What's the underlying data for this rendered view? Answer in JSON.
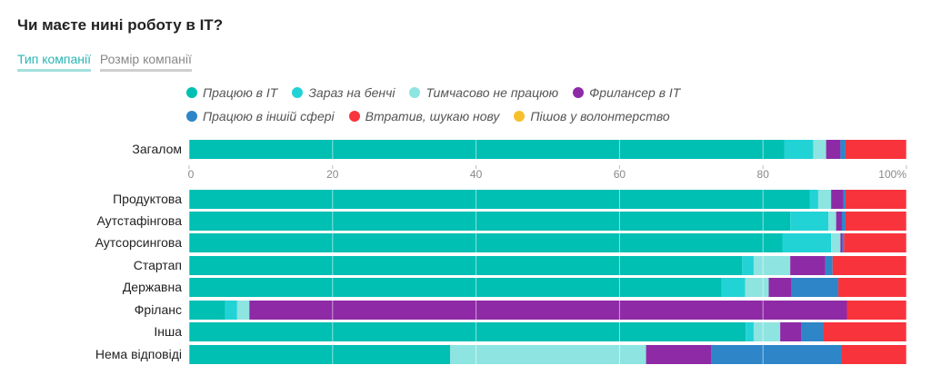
{
  "title": "Чи маєте нині роботу в IT?",
  "tabs": [
    {
      "label": "Тип компанії",
      "active": true
    },
    {
      "label": "Розмір компанії",
      "active": false
    }
  ],
  "legend_rows": [
    [
      0,
      1,
      2,
      3
    ],
    [
      4,
      5,
      6
    ]
  ],
  "chart_data": {
    "type": "bar",
    "orientation": "horizontal",
    "stacked": true,
    "xlim": [
      0,
      100
    ],
    "xticks": [
      "0",
      "20",
      "40",
      "60",
      "80",
      "100%"
    ],
    "grid": true,
    "legend_position": "top",
    "series": [
      {
        "name": "Працюю в IT",
        "color": "#00bfb3"
      },
      {
        "name": "Зараз на бенчі",
        "color": "#22d3d6"
      },
      {
        "name": "Тимчасово не працюю",
        "color": "#8ee4e0"
      },
      {
        "name": "Фрилансер в IT",
        "color": "#8e2aa6"
      },
      {
        "name": "Працюю в іншій сфері",
        "color": "#2e86c8"
      },
      {
        "name": "Втратив, шукаю нову",
        "color": "#f8333c"
      },
      {
        "name": "Пішов у волонтерство",
        "color": "#f5c02c"
      }
    ],
    "categories": [
      "Загалом",
      "Продуктова",
      "Аутстафінгова",
      "Аутсорсингова",
      "Стартап",
      "Державна",
      "Фріланс",
      "Інша",
      "Нема відповіді"
    ],
    "values": [
      [
        83.0,
        4.0,
        1.8,
        2.0,
        0.7,
        8.5,
        0.0
      ],
      [
        86.5,
        1.2,
        1.8,
        1.7,
        0.3,
        8.5,
        0.0
      ],
      [
        83.8,
        5.3,
        1.1,
        0.8,
        0.5,
        8.5,
        0.0
      ],
      [
        82.7,
        6.8,
        1.3,
        0.3,
        0.2,
        8.7,
        0.0
      ],
      [
        77.1,
        1.6,
        5.1,
        4.9,
        1.0,
        10.3,
        0.0
      ],
      [
        74.2,
        3.3,
        3.3,
        3.2,
        6.5,
        9.5,
        0.0
      ],
      [
        5.0,
        1.7,
        1.7,
        83.3,
        0.0,
        8.3,
        0.0
      ],
      [
        77.6,
        1.1,
        3.7,
        2.9,
        3.1,
        11.6,
        0.0
      ],
      [
        36.4,
        0.0,
        27.3,
        9.1,
        18.2,
        9.0,
        0.0
      ]
    ]
  }
}
